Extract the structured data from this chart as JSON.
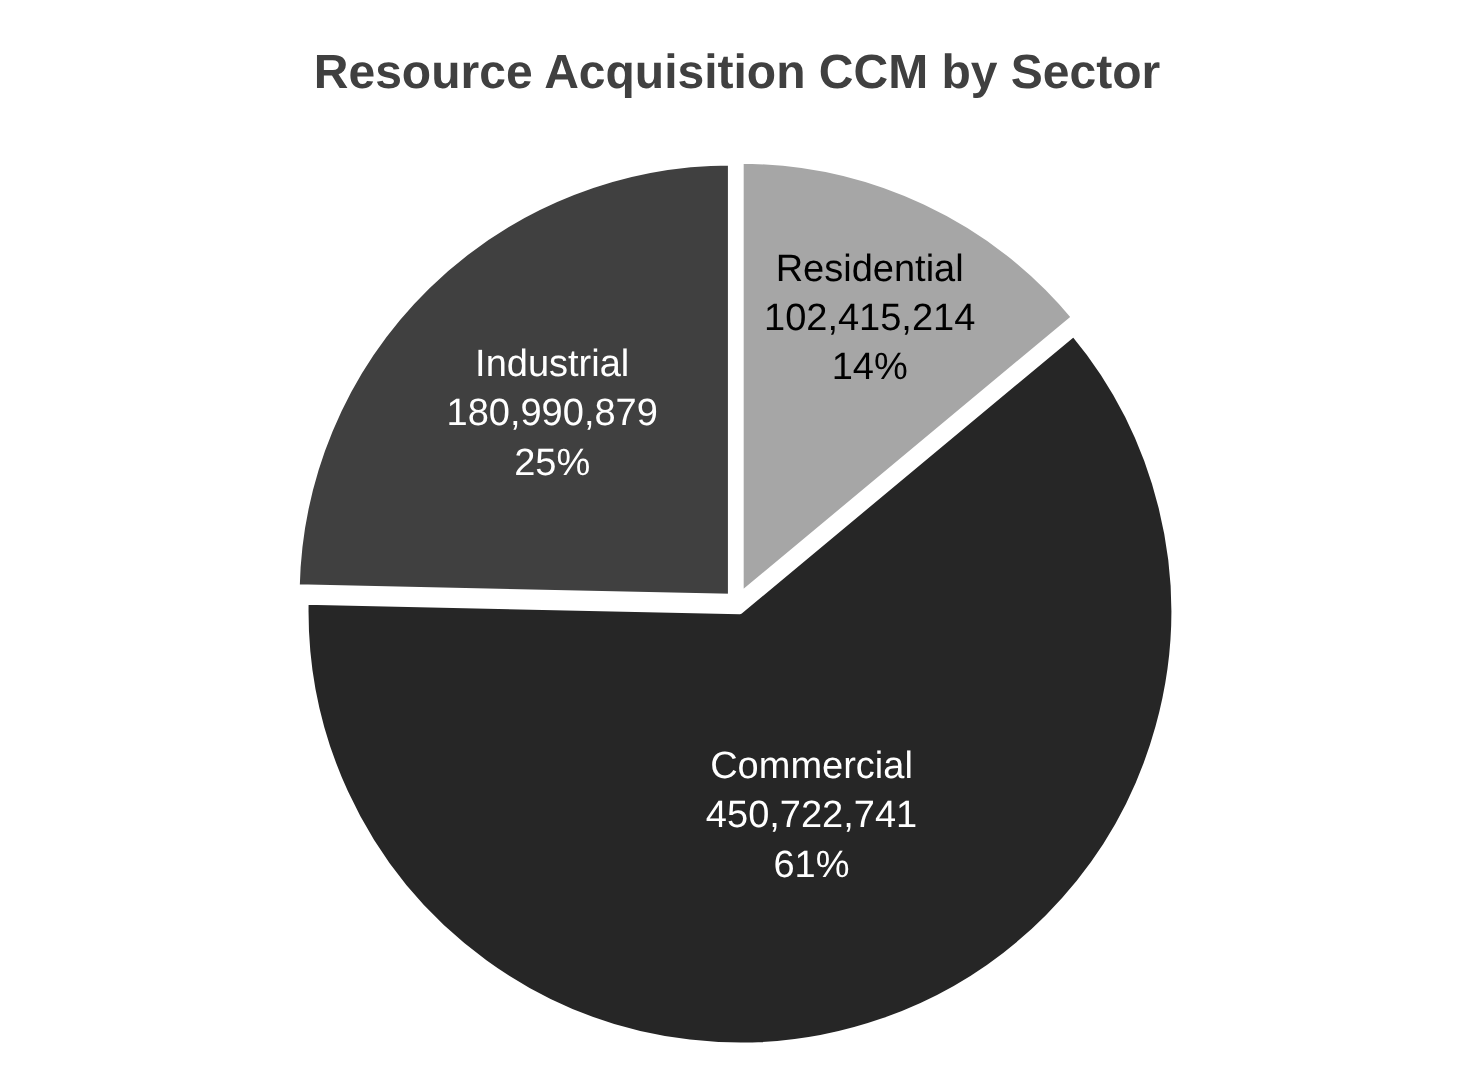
{
  "chart_data": {
    "type": "pie",
    "title": "Resource Acquisition CCM by Sector",
    "categories": [
      "Residential",
      "Commercial",
      "Industrial"
    ],
    "values": [
      102415214,
      450722741,
      180990879
    ],
    "value_labels": [
      "102,415,214\n14%",
      "450,722,741\n61%",
      "180,990,879\n25%"
    ],
    "colors": [
      "#a6a6a6",
      "#262626",
      "#404040"
    ],
    "legend": false
  }
}
